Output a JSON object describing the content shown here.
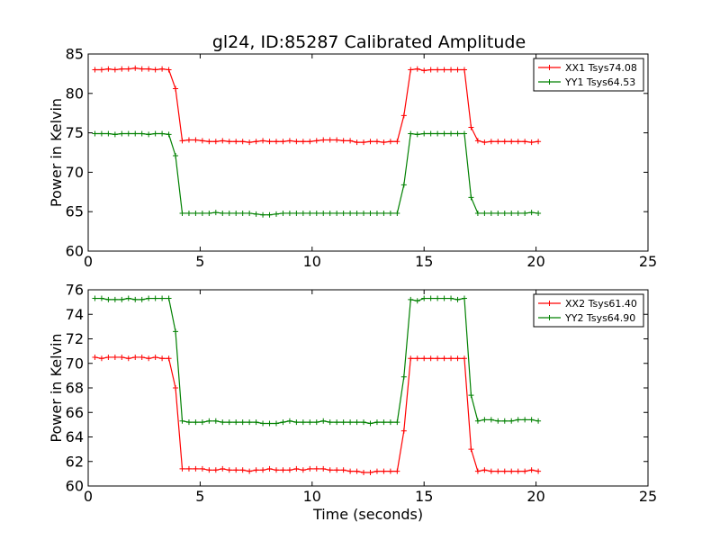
{
  "figure": {
    "title": "gl24, ID:85287 Calibrated Amplitude"
  },
  "chart_data": [
    {
      "type": "line",
      "title": "gl24, ID:85287 Calibrated Amplitude",
      "xlabel": "",
      "ylabel": "Power in Kelvin",
      "xlim": [
        0,
        25
      ],
      "ylim": [
        60,
        85
      ],
      "x_ticks": [
        "0",
        "5",
        "10",
        "15",
        "20",
        "25"
      ],
      "y_ticks": [
        "60",
        "65",
        "70",
        "75",
        "80",
        "85"
      ],
      "grid": false,
      "legend_position": "top-right",
      "series": [
        {
          "name": "XX1 Tsys74.08",
          "color": "#ff0000",
          "x": [
            0.3,
            0.6,
            0.9,
            1.2,
            1.5,
            1.8,
            2.1,
            2.4,
            2.7,
            3.0,
            3.3,
            3.6,
            3.9,
            4.2,
            4.5,
            4.8,
            5.1,
            5.4,
            5.7,
            6.0,
            6.3,
            6.6,
            6.9,
            7.2,
            7.5,
            7.8,
            8.1,
            8.4,
            8.7,
            9.0,
            9.3,
            9.6,
            9.9,
            10.2,
            10.5,
            10.8,
            11.1,
            11.4,
            11.7,
            12.0,
            12.3,
            12.6,
            12.9,
            13.2,
            13.5,
            13.8,
            14.1,
            14.4,
            14.7,
            15.0,
            15.3,
            15.6,
            15.9,
            16.2,
            16.5,
            16.8,
            17.1,
            17.4,
            17.7,
            18.0,
            18.3,
            18.6,
            18.9,
            19.2,
            19.5,
            19.8,
            20.1
          ],
          "y": [
            83.0,
            83.0,
            83.1,
            83.0,
            83.1,
            83.1,
            83.2,
            83.1,
            83.1,
            83.0,
            83.1,
            83.0,
            80.6,
            74.0,
            74.1,
            74.1,
            74.0,
            73.9,
            73.9,
            74.0,
            73.9,
            73.9,
            73.9,
            73.8,
            73.9,
            74.0,
            73.9,
            73.9,
            73.9,
            74.0,
            73.9,
            73.9,
            73.9,
            74.0,
            74.1,
            74.1,
            74.1,
            74.0,
            74.0,
            73.8,
            73.8,
            73.9,
            73.9,
            73.8,
            73.9,
            73.9,
            77.2,
            83.0,
            83.1,
            82.9,
            83.0,
            83.0,
            83.0,
            83.0,
            83.0,
            83.0,
            75.7,
            74.0,
            73.8,
            73.9,
            73.9,
            73.9,
            73.9,
            73.9,
            73.9,
            73.8,
            73.9
          ]
        },
        {
          "name": "YY1 Tsys64.53",
          "color": "#008000",
          "x": [
            0.3,
            0.6,
            0.9,
            1.2,
            1.5,
            1.8,
            2.1,
            2.4,
            2.7,
            3.0,
            3.3,
            3.6,
            3.9,
            4.2,
            4.5,
            4.8,
            5.1,
            5.4,
            5.7,
            6.0,
            6.3,
            6.6,
            6.9,
            7.2,
            7.5,
            7.8,
            8.1,
            8.4,
            8.7,
            9.0,
            9.3,
            9.6,
            9.9,
            10.2,
            10.5,
            10.8,
            11.1,
            11.4,
            11.7,
            12.0,
            12.3,
            12.6,
            12.9,
            13.2,
            13.5,
            13.8,
            14.1,
            14.4,
            14.7,
            15.0,
            15.3,
            15.6,
            15.9,
            16.2,
            16.5,
            16.8,
            17.1,
            17.4,
            17.7,
            18.0,
            18.3,
            18.6,
            18.9,
            19.2,
            19.5,
            19.8,
            20.1
          ],
          "y": [
            74.9,
            74.9,
            74.9,
            74.8,
            74.9,
            74.9,
            74.9,
            74.9,
            74.8,
            74.9,
            74.9,
            74.8,
            72.1,
            64.8,
            64.8,
            64.8,
            64.8,
            64.8,
            64.9,
            64.8,
            64.8,
            64.8,
            64.8,
            64.8,
            64.7,
            64.6,
            64.6,
            64.7,
            64.8,
            64.8,
            64.8,
            64.8,
            64.8,
            64.8,
            64.8,
            64.8,
            64.8,
            64.8,
            64.8,
            64.8,
            64.8,
            64.8,
            64.8,
            64.8,
            64.8,
            64.8,
            68.4,
            74.9,
            74.8,
            74.9,
            74.9,
            74.9,
            74.9,
            74.9,
            74.9,
            74.9,
            66.8,
            64.8,
            64.8,
            64.8,
            64.8,
            64.8,
            64.8,
            64.8,
            64.8,
            64.9,
            64.8
          ]
        }
      ]
    },
    {
      "type": "line",
      "title": "",
      "xlabel": "Time (seconds)",
      "ylabel": "Power in Kelvin",
      "xlim": [
        0,
        25
      ],
      "ylim": [
        60,
        76
      ],
      "x_ticks": [
        "0",
        "5",
        "10",
        "15",
        "20",
        "25"
      ],
      "y_ticks": [
        "60",
        "62",
        "64",
        "66",
        "68",
        "70",
        "72",
        "74",
        "76"
      ],
      "grid": false,
      "legend_position": "top-right",
      "series": [
        {
          "name": "XX2 Tsys61.40",
          "color": "#ff0000",
          "x": [
            0.3,
            0.6,
            0.9,
            1.2,
            1.5,
            1.8,
            2.1,
            2.4,
            2.7,
            3.0,
            3.3,
            3.6,
            3.9,
            4.2,
            4.5,
            4.8,
            5.1,
            5.4,
            5.7,
            6.0,
            6.3,
            6.6,
            6.9,
            7.2,
            7.5,
            7.8,
            8.1,
            8.4,
            8.7,
            9.0,
            9.3,
            9.6,
            9.9,
            10.2,
            10.5,
            10.8,
            11.1,
            11.4,
            11.7,
            12.0,
            12.3,
            12.6,
            12.9,
            13.2,
            13.5,
            13.8,
            14.1,
            14.4,
            14.7,
            15.0,
            15.3,
            15.6,
            15.9,
            16.2,
            16.5,
            16.8,
            17.1,
            17.4,
            17.7,
            18.0,
            18.3,
            18.6,
            18.9,
            19.2,
            19.5,
            19.8,
            20.1
          ],
          "y": [
            70.5,
            70.4,
            70.5,
            70.5,
            70.5,
            70.4,
            70.5,
            70.5,
            70.4,
            70.5,
            70.4,
            70.4,
            68.0,
            61.4,
            61.4,
            61.4,
            61.4,
            61.3,
            61.3,
            61.4,
            61.3,
            61.3,
            61.3,
            61.2,
            61.3,
            61.3,
            61.4,
            61.3,
            61.3,
            61.3,
            61.4,
            61.3,
            61.4,
            61.4,
            61.4,
            61.3,
            61.3,
            61.3,
            61.2,
            61.2,
            61.1,
            61.1,
            61.2,
            61.2,
            61.2,
            61.2,
            64.5,
            70.4,
            70.4,
            70.4,
            70.4,
            70.4,
            70.4,
            70.4,
            70.4,
            70.4,
            63.0,
            61.2,
            61.3,
            61.2,
            61.2,
            61.2,
            61.2,
            61.2,
            61.2,
            61.3,
            61.2
          ]
        },
        {
          "name": "YY2 Tsys64.90",
          "color": "#008000",
          "x": [
            0.3,
            0.6,
            0.9,
            1.2,
            1.5,
            1.8,
            2.1,
            2.4,
            2.7,
            3.0,
            3.3,
            3.6,
            3.9,
            4.2,
            4.5,
            4.8,
            5.1,
            5.4,
            5.7,
            6.0,
            6.3,
            6.6,
            6.9,
            7.2,
            7.5,
            7.8,
            8.1,
            8.4,
            8.7,
            9.0,
            9.3,
            9.6,
            9.9,
            10.2,
            10.5,
            10.8,
            11.1,
            11.4,
            11.7,
            12.0,
            12.3,
            12.6,
            12.9,
            13.2,
            13.5,
            13.8,
            14.1,
            14.4,
            14.7,
            15.0,
            15.3,
            15.6,
            15.9,
            16.2,
            16.5,
            16.8,
            17.1,
            17.4,
            17.7,
            18.0,
            18.3,
            18.6,
            18.9,
            19.2,
            19.5,
            19.8,
            20.1
          ],
          "y": [
            75.3,
            75.3,
            75.2,
            75.2,
            75.2,
            75.3,
            75.2,
            75.2,
            75.3,
            75.3,
            75.3,
            75.3,
            72.6,
            65.3,
            65.2,
            65.2,
            65.2,
            65.3,
            65.3,
            65.2,
            65.2,
            65.2,
            65.2,
            65.2,
            65.2,
            65.1,
            65.1,
            65.1,
            65.2,
            65.3,
            65.2,
            65.2,
            65.2,
            65.2,
            65.3,
            65.2,
            65.2,
            65.2,
            65.2,
            65.2,
            65.2,
            65.1,
            65.2,
            65.2,
            65.2,
            65.2,
            68.9,
            75.2,
            75.1,
            75.3,
            75.3,
            75.3,
            75.3,
            75.3,
            75.2,
            75.3,
            67.4,
            65.3,
            65.4,
            65.4,
            65.3,
            65.3,
            65.3,
            65.4,
            65.4,
            65.4,
            65.3
          ]
        }
      ]
    }
  ]
}
